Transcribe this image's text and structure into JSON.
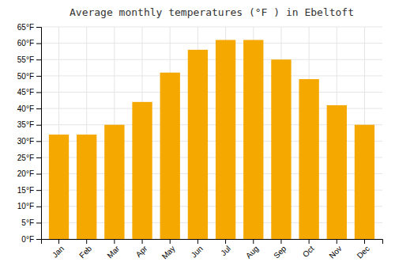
{
  "chart_data": {
    "type": "bar",
    "title": "Average monthly temperatures (°F ) in Ebeltoft",
    "categories": [
      "Jan",
      "Feb",
      "Mar",
      "Apr",
      "May",
      "Jun",
      "Jul",
      "Aug",
      "Sep",
      "Oct",
      "Nov",
      "Dec"
    ],
    "values": [
      32,
      32,
      35,
      42,
      51,
      58,
      61,
      61,
      55,
      49,
      41,
      35
    ],
    "color": "#F5A800",
    "ylim": [
      0,
      65
    ],
    "yticks": [
      {
        "value": 0,
        "label": "0°F"
      },
      {
        "value": 5,
        "label": "5°F"
      },
      {
        "value": 10,
        "label": "10°F"
      },
      {
        "value": 15,
        "label": "15°F"
      },
      {
        "value": 20,
        "label": "20°F"
      },
      {
        "value": 25,
        "label": "25°F"
      },
      {
        "value": 30,
        "label": "30°F"
      },
      {
        "value": 35,
        "label": "35°F"
      },
      {
        "value": 40,
        "label": "40°F"
      },
      {
        "value": 45,
        "label": "45°F"
      },
      {
        "value": 50,
        "label": "50°F"
      },
      {
        "value": 55,
        "label": "55°F"
      },
      {
        "value": 60,
        "label": "60°F"
      },
      {
        "value": 65,
        "label": "65°F"
      }
    ],
    "grid": true
  }
}
